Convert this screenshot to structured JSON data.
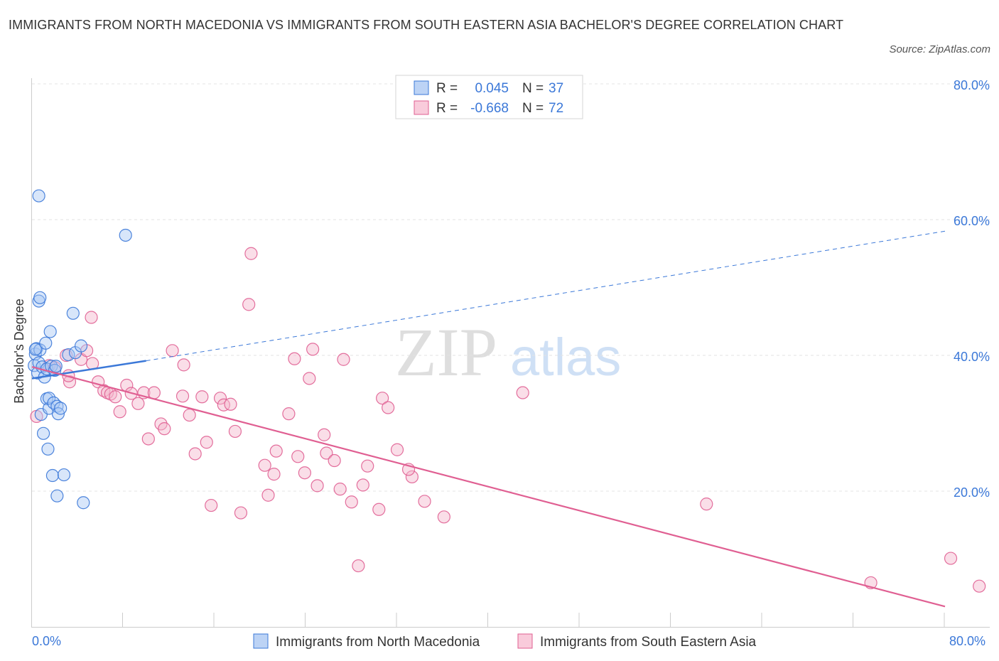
{
  "title": "IMMIGRANTS FROM NORTH MACEDONIA VS IMMIGRANTS FROM SOUTH EASTERN ASIA BACHELOR'S DEGREE CORRELATION CHART",
  "source": "Source: ZipAtlas.com",
  "watermark": {
    "zip": "ZIP",
    "atlas": "atlas"
  },
  "colors": {
    "blue": "#3b78d8",
    "blue_fill": "#a9c8f3",
    "pink": "#e05f92",
    "pink_fill": "#f5b6cb",
    "axis_text": "#3b78d8",
    "grid": "#e3e3e3"
  },
  "chart_data": {
    "type": "scatter",
    "ylabel": "Bachelor's Degree",
    "xlim": [
      0,
      80
    ],
    "ylim": [
      0,
      80
    ],
    "x_tick_labels": [
      "0.0%",
      "80.0%"
    ],
    "y_tick_labels": [
      "20.0%",
      "40.0%",
      "60.0%",
      "80.0%"
    ],
    "y_gridlines": [
      20,
      40,
      60,
      80
    ],
    "legend": [
      {
        "label": "Immigrants from North Macedonia",
        "r_label": "R =",
        "r": "0.045",
        "n_label": "N =",
        "n": "37"
      },
      {
        "label": "Immigrants from South Eastern Asia",
        "r_label": "R =",
        "r": "-0.668",
        "n_label": "N =",
        "n": "72"
      }
    ],
    "series": [
      {
        "name": "Immigrants from North Macedonia",
        "color": "blue",
        "trend": {
          "x0": 0,
          "y0": 36.6,
          "x1": 10,
          "y1": 39.2,
          "dash_to_x": 80,
          "dash_to_y": 58.3
        },
        "points": [
          [
            0.2,
            38.5
          ],
          [
            0.3,
            40.2
          ],
          [
            0.4,
            41.0
          ],
          [
            0.5,
            37.4
          ],
          [
            0.6,
            38.9
          ],
          [
            0.6,
            63.5
          ],
          [
            0.6,
            48.0
          ],
          [
            0.7,
            48.5
          ],
          [
            0.7,
            40.8
          ],
          [
            0.8,
            31.3
          ],
          [
            0.9,
            38.3
          ],
          [
            1.0,
            28.5
          ],
          [
            1.1,
            36.8
          ],
          [
            1.2,
            41.8
          ],
          [
            1.3,
            38.0
          ],
          [
            1.3,
            33.6
          ],
          [
            1.4,
            26.2
          ],
          [
            1.5,
            32.2
          ],
          [
            1.5,
            33.7
          ],
          [
            1.6,
            43.5
          ],
          [
            1.7,
            38.4
          ],
          [
            1.8,
            22.3
          ],
          [
            1.9,
            33.0
          ],
          [
            2.0,
            37.8
          ],
          [
            2.1,
            38.4
          ],
          [
            2.2,
            32.5
          ],
          [
            2.2,
            19.3
          ],
          [
            2.3,
            31.4
          ],
          [
            2.5,
            32.2
          ],
          [
            2.8,
            22.4
          ],
          [
            3.2,
            40.1
          ],
          [
            3.6,
            46.2
          ],
          [
            3.8,
            40.4
          ],
          [
            4.3,
            41.4
          ],
          [
            4.5,
            18.3
          ],
          [
            8.2,
            57.7
          ],
          [
            0.3,
            40.9
          ]
        ]
      },
      {
        "name": "Immigrants from South Eastern Asia",
        "color": "pink",
        "trend": {
          "x0": 0,
          "y0": 38.3,
          "x1": 80,
          "y1": 3.0
        },
        "points": [
          [
            0.4,
            31.0
          ],
          [
            1.5,
            38.5
          ],
          [
            2.0,
            38.2
          ],
          [
            3.0,
            40.0
          ],
          [
            3.3,
            36.1
          ],
          [
            4.3,
            39.4
          ],
          [
            4.8,
            40.7
          ],
          [
            5.2,
            45.6
          ],
          [
            5.8,
            36.1
          ],
          [
            6.3,
            34.8
          ],
          [
            6.6,
            34.5
          ],
          [
            6.9,
            34.3
          ],
          [
            7.3,
            33.9
          ],
          [
            7.7,
            31.7
          ],
          [
            8.3,
            35.6
          ],
          [
            8.7,
            34.4
          ],
          [
            9.3,
            32.9
          ],
          [
            9.8,
            34.5
          ],
          [
            10.2,
            27.7
          ],
          [
            10.7,
            34.5
          ],
          [
            11.3,
            29.9
          ],
          [
            11.6,
            29.2
          ],
          [
            12.3,
            40.7
          ],
          [
            13.2,
            34.0
          ],
          [
            13.3,
            38.6
          ],
          [
            13.8,
            31.2
          ],
          [
            14.3,
            25.5
          ],
          [
            14.9,
            33.9
          ],
          [
            15.3,
            27.2
          ],
          [
            15.7,
            17.9
          ],
          [
            16.5,
            33.7
          ],
          [
            16.8,
            32.7
          ],
          [
            17.4,
            32.8
          ],
          [
            17.8,
            28.8
          ],
          [
            18.3,
            16.8
          ],
          [
            19.0,
            47.5
          ],
          [
            19.2,
            55.0
          ],
          [
            20.4,
            23.8
          ],
          [
            20.7,
            19.4
          ],
          [
            21.2,
            22.5
          ],
          [
            21.4,
            25.9
          ],
          [
            22.5,
            31.4
          ],
          [
            23.0,
            39.5
          ],
          [
            23.3,
            25.1
          ],
          [
            23.9,
            22.7
          ],
          [
            24.3,
            36.6
          ],
          [
            24.6,
            40.9
          ],
          [
            25.0,
            20.8
          ],
          [
            25.6,
            28.3
          ],
          [
            25.8,
            25.6
          ],
          [
            26.5,
            24.5
          ],
          [
            27.0,
            20.3
          ],
          [
            27.3,
            39.4
          ],
          [
            28.0,
            18.4
          ],
          [
            28.6,
            9.0
          ],
          [
            29.0,
            20.9
          ],
          [
            29.4,
            23.7
          ],
          [
            30.4,
            17.3
          ],
          [
            30.7,
            33.7
          ],
          [
            31.2,
            32.3
          ],
          [
            32.0,
            26.1
          ],
          [
            33.3,
            22.1
          ],
          [
            33.0,
            23.2
          ],
          [
            34.4,
            18.5
          ],
          [
            36.1,
            16.2
          ],
          [
            43.0,
            34.5
          ],
          [
            59.1,
            18.1
          ],
          [
            73.5,
            6.5
          ],
          [
            80.5,
            10.1
          ],
          [
            83.0,
            6.0
          ],
          [
            3.2,
            37.0
          ],
          [
            5.3,
            38.8
          ]
        ]
      }
    ]
  }
}
